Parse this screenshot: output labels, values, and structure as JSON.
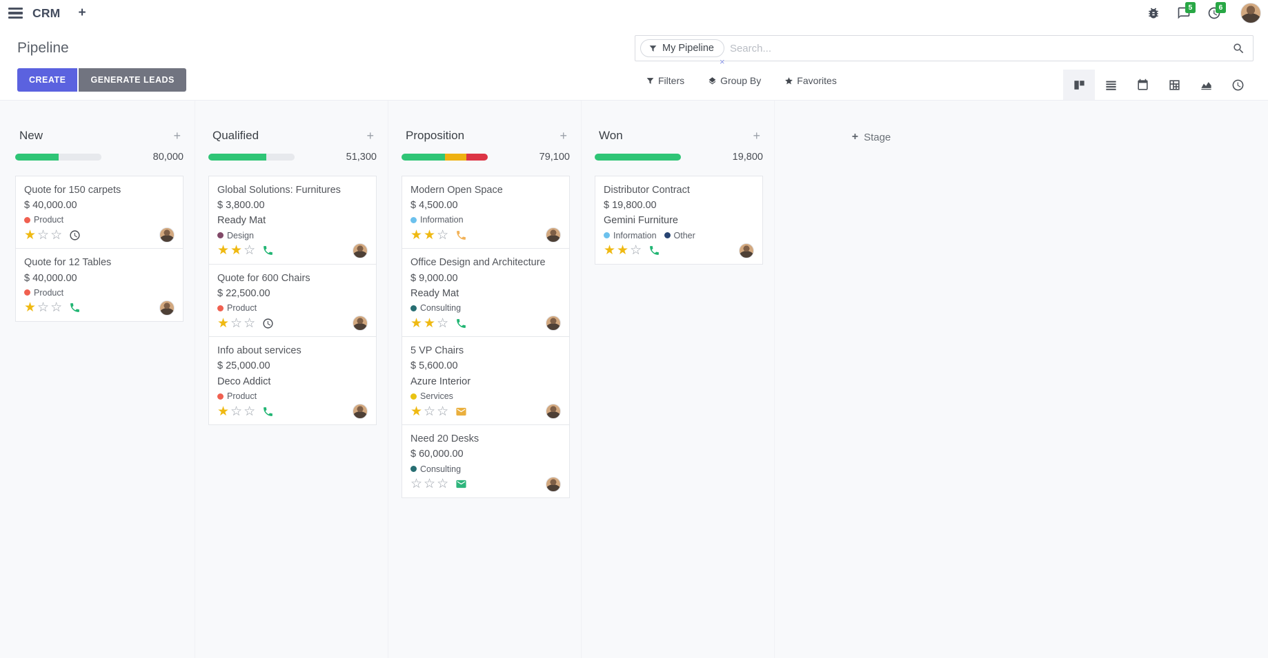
{
  "topbar": {
    "app_name": "CRM",
    "new_label": "+",
    "systray": {
      "messages_badge": "5",
      "activities_badge": "6"
    }
  },
  "control_panel": {
    "title": "Pipeline",
    "buttons": {
      "create": "CREATE",
      "generate_leads": "GENERATE LEADS"
    },
    "search": {
      "facet_label": "My Pipeline",
      "placeholder": "Search...",
      "remove_facet_label": "×"
    },
    "menus": {
      "filters": "Filters",
      "group_by": "Group By",
      "favorites": "Favorites"
    },
    "view_switcher": {
      "active": "kanban",
      "views": [
        "kanban",
        "list",
        "calendar",
        "pivot",
        "graph",
        "activity"
      ]
    }
  },
  "kanban": {
    "add_stage_plus": "+",
    "add_stage_label": "Stage",
    "columns": [
      {
        "name": "New",
        "quick_add_label": "+",
        "total": "80,000",
        "progress": [
          {
            "color": "#2fc576",
            "pct": 50
          },
          {
            "color": "#e7e9ed",
            "pct": 50
          }
        ],
        "cards": [
          {
            "title": "Quote for 150 carpets",
            "amount": "$ 40,000.00",
            "tags": [
              {
                "label": "Product",
                "color": "#f06050"
              }
            ],
            "stars": 1,
            "activity": {
              "icon": "clock-icon",
              "color": "#4a4e55"
            }
          },
          {
            "title": "Quote for 12 Tables",
            "amount": "$ 40,000.00",
            "tags": [
              {
                "label": "Product",
                "color": "#f06050"
              }
            ],
            "stars": 1,
            "activity": {
              "icon": "phone-icon",
              "color": "#21b573"
            }
          }
        ]
      },
      {
        "name": "Qualified",
        "quick_add_label": "+",
        "total": "51,300",
        "progress": [
          {
            "color": "#2fc576",
            "pct": 67
          },
          {
            "color": "#e7e9ed",
            "pct": 33
          }
        ],
        "cards": [
          {
            "title": "Global Solutions: Furnitures",
            "amount": "$ 3,800.00",
            "partner": "Ready Mat",
            "tags": [
              {
                "label": "Design",
                "color": "#814968"
              }
            ],
            "stars": 2,
            "activity": {
              "icon": "phone-icon",
              "color": "#21b573"
            }
          },
          {
            "title": "Quote for 600 Chairs",
            "amount": "$ 22,500.00",
            "tags": [
              {
                "label": "Product",
                "color": "#f06050"
              }
            ],
            "stars": 1,
            "activity": {
              "icon": "clock-icon",
              "color": "#4a4e55"
            }
          },
          {
            "title": "Info about services",
            "amount": "$ 25,000.00",
            "partner": "Deco Addict",
            "tags": [
              {
                "label": "Product",
                "color": "#f06050"
              }
            ],
            "stars": 1,
            "activity": {
              "icon": "phone-icon",
              "color": "#21b573"
            }
          }
        ]
      },
      {
        "name": "Proposition",
        "quick_add_label": "+",
        "total": "79,100",
        "progress": [
          {
            "color": "#2fc576",
            "pct": 50
          },
          {
            "color": "#eeb111",
            "pct": 25
          },
          {
            "color": "#dc3545",
            "pct": 25
          }
        ],
        "cards": [
          {
            "title": "Modern Open Space",
            "amount": "$ 4,500.00",
            "tags": [
              {
                "label": "Information",
                "color": "#6cc1ed"
              }
            ],
            "stars": 2,
            "activity": {
              "icon": "phone-icon",
              "color": "#f2b258"
            }
          },
          {
            "title": "Office Design and Architecture",
            "amount": "$ 9,000.00",
            "partner": "Ready Mat",
            "tags": [
              {
                "label": "Consulting",
                "color": "#276e72"
              }
            ],
            "stars": 2,
            "activity": {
              "icon": "phone-icon",
              "color": "#21b573"
            }
          },
          {
            "title": "5 VP Chairs",
            "amount": "$ 5,600.00",
            "partner": "Azure Interior",
            "tags": [
              {
                "label": "Services",
                "color": "#e9c313"
              }
            ],
            "stars": 1,
            "activity": {
              "icon": "mail-icon",
              "color": "#eaaf3d"
            }
          },
          {
            "title": "Need 20 Desks",
            "amount": "$ 60,000.00",
            "tags": [
              {
                "label": "Consulting",
                "color": "#276e72"
              }
            ],
            "stars": 0,
            "activity": {
              "icon": "mail-icon",
              "color": "#2eb57c"
            }
          }
        ]
      },
      {
        "name": "Won",
        "quick_add_label": "+",
        "total": "19,800",
        "progress": [
          {
            "color": "#2fc576",
            "pct": 100
          }
        ],
        "cards": [
          {
            "title": "Distributor Contract",
            "amount": "$ 19,800.00",
            "partner": "Gemini Furniture",
            "tags": [
              {
                "label": "Information",
                "color": "#6cc1ed"
              },
              {
                "label": "Other",
                "color": "#274472"
              }
            ],
            "stars": 2,
            "activity": {
              "icon": "phone-icon",
              "color": "#21b573"
            }
          }
        ]
      }
    ]
  },
  "colors": {
    "create_button": "#5b62df",
    "generate_button": "#717480",
    "badge_green": "#28a745",
    "progress_green": "#2fc576",
    "progress_yellow": "#eeb111",
    "progress_red": "#dc3545",
    "progress_muted": "#e7e9ed",
    "star_gold": "#efb912"
  }
}
